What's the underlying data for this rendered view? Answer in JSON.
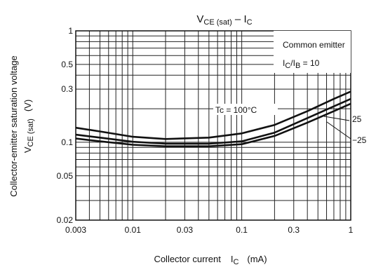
{
  "chart_data": {
    "type": "line",
    "title_main": "V",
    "title_sub": "CE (sat)",
    "title_sep": " – I",
    "title_end": "C",
    "xlabel_text": "Collector current",
    "xlabel_sym": "I",
    "xlabel_sub": "C",
    "xlabel_unit": "(mA)",
    "ylabel_line1": "Collector-emitter saturation voltage",
    "ylabel_line2_sym": "V",
    "ylabel_line2_sub": "CE (sat)",
    "ylabel_line2_unit": "(V)",
    "x_scale": "log",
    "y_scale": "log",
    "xlim": [
      0.003,
      1
    ],
    "ylim": [
      0.02,
      1
    ],
    "x_ticks": [
      {
        "v": 0.003,
        "label": "0.003"
      },
      {
        "v": 0.01,
        "label": "0.01"
      },
      {
        "v": 0.03,
        "label": "0.03"
      },
      {
        "v": 0.1,
        "label": "0.1"
      },
      {
        "v": 0.3,
        "label": "0.3"
      },
      {
        "v": 1,
        "label": "1"
      }
    ],
    "y_ticks": [
      {
        "v": 1,
        "label": "1"
      },
      {
        "v": 0.5,
        "label": "0.5"
      },
      {
        "v": 0.3,
        "label": "0.3"
      },
      {
        "v": 0.1,
        "label": "0.1"
      },
      {
        "v": 0.05,
        "label": "0.05"
      },
      {
        "v": 0.02,
        "label": "0.02"
      }
    ],
    "grid": true,
    "annotations": {
      "line1": "Common emitter",
      "line2_sym": "I",
      "line2_sub1": "C",
      "line2_mid": "/I",
      "line2_sub2": "B",
      "line2_end": " = 10"
    },
    "series": [
      {
        "label": "Tc = 100°C",
        "x": [
          0.003,
          0.005,
          0.01,
          0.02,
          0.05,
          0.1,
          0.2,
          0.4,
          0.7,
          1.0
        ],
        "y": [
          0.135,
          0.125,
          0.112,
          0.107,
          0.11,
          0.12,
          0.143,
          0.19,
          0.245,
          0.285
        ]
      },
      {
        "label": "25",
        "x": [
          0.003,
          0.005,
          0.01,
          0.02,
          0.05,
          0.1,
          0.2,
          0.4,
          0.7,
          1.0
        ],
        "y": [
          0.117,
          0.11,
          0.101,
          0.097,
          0.097,
          0.102,
          0.122,
          0.165,
          0.21,
          0.245
        ]
      },
      {
        "label": "−25",
        "x": [
          0.003,
          0.005,
          0.01,
          0.02,
          0.05,
          0.1,
          0.2,
          0.4,
          0.7,
          1.0
        ],
        "y": [
          0.108,
          0.102,
          0.095,
          0.092,
          0.092,
          0.096,
          0.114,
          0.15,
          0.19,
          0.222
        ]
      }
    ]
  }
}
